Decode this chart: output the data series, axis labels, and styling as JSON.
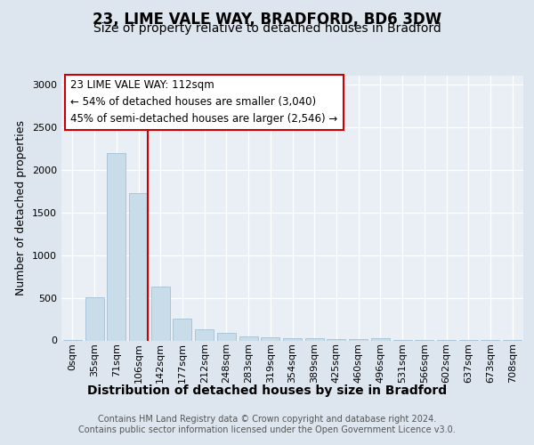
{
  "title1": "23, LIME VALE WAY, BRADFORD, BD6 3DW",
  "title2": "Size of property relative to detached houses in Bradford",
  "xlabel": "Distribution of detached houses by size in Bradford",
  "ylabel": "Number of detached properties",
  "bar_labels": [
    "0sqm",
    "35sqm",
    "71sqm",
    "106sqm",
    "142sqm",
    "177sqm",
    "212sqm",
    "248sqm",
    "283sqm",
    "319sqm",
    "354sqm",
    "389sqm",
    "425sqm",
    "460sqm",
    "496sqm",
    "531sqm",
    "566sqm",
    "602sqm",
    "637sqm",
    "673sqm",
    "708sqm"
  ],
  "bar_values": [
    10,
    510,
    2190,
    1720,
    630,
    255,
    135,
    85,
    50,
    35,
    28,
    22,
    18,
    12,
    28,
    5,
    5,
    5,
    5,
    5,
    5
  ],
  "bar_color": "#c8dcea",
  "bar_edgecolor": "#9ab8d0",
  "vline_x": 3.42,
  "vline_color": "#cc0000",
  "annotation_text": "23 LIME VALE WAY: 112sqm\n← 54% of detached houses are smaller (3,040)\n45% of semi-detached houses are larger (2,546) →",
  "annotation_box_facecolor": "white",
  "annotation_box_edgecolor": "#cc0000",
  "footnote": "Contains HM Land Registry data © Crown copyright and database right 2024.\nContains public sector information licensed under the Open Government Licence v3.0.",
  "ylim": [
    0,
    3100
  ],
  "background_color": "#dde6ef",
  "plot_background_color": "#eaeff5",
  "grid_color": "white",
  "title1_fontsize": 12,
  "title2_fontsize": 10,
  "xlabel_fontsize": 10,
  "ylabel_fontsize": 9,
  "tick_fontsize": 8,
  "footnote_fontsize": 7,
  "annotation_fontsize": 8.5
}
